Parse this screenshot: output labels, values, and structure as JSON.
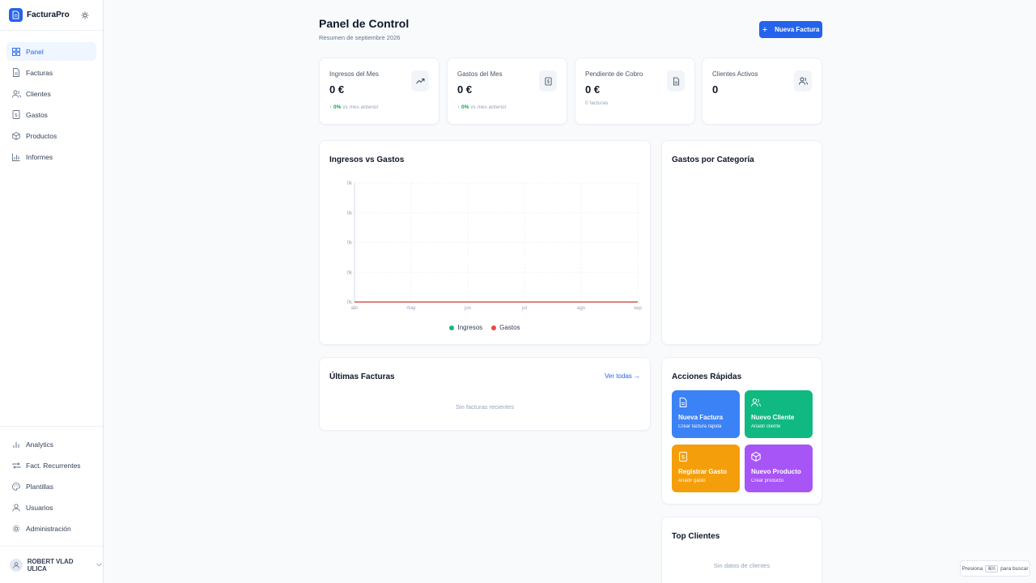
{
  "app": {
    "name": "FacturaPro"
  },
  "sidebar": {
    "items": [
      {
        "label": "Panel",
        "icon": "dashboard-icon",
        "active": true
      },
      {
        "label": "Facturas",
        "icon": "file-icon"
      },
      {
        "label": "Clientes",
        "icon": "users-icon"
      },
      {
        "label": "Gastos",
        "icon": "receipt-icon"
      },
      {
        "label": "Productos",
        "icon": "box-icon"
      },
      {
        "label": "Informes",
        "icon": "bar-chart-icon"
      }
    ],
    "bottom_items": [
      {
        "label": "Analytics",
        "icon": "analytics-icon"
      },
      {
        "label": "Fact. Recurrentes",
        "icon": "repeat-icon"
      },
      {
        "label": "Plantillas",
        "icon": "palette-icon"
      },
      {
        "label": "Usuarios",
        "icon": "user-icon"
      },
      {
        "label": "Administración",
        "icon": "settings-icon"
      }
    ],
    "user": {
      "name": "ROBERT VLAD ULICA"
    }
  },
  "header": {
    "title": "Panel de Control",
    "subtitle": "Resumen de septiembre 2026",
    "new_invoice_label": "Nueva Factura"
  },
  "stats": [
    {
      "label": "Ingresos del Mes",
      "value": "0 €",
      "change": "↑ 0%",
      "note": "vs mes anterior",
      "icon": "trending-up-icon"
    },
    {
      "label": "Gastos del Mes",
      "value": "0 €",
      "change": "↑ 0%",
      "note": "vs mes anterior",
      "icon": "receipt-icon"
    },
    {
      "label": "Pendiente de Cobro",
      "value": "0 €",
      "note": "0 facturas",
      "icon": "file-icon"
    },
    {
      "label": "Clientes Activos",
      "value": "0",
      "icon": "users-icon"
    }
  ],
  "chart_card": {
    "title": "Ingresos vs Gastos"
  },
  "chart_data": {
    "type": "line",
    "x": [
      "abr",
      "may",
      "jun",
      "jul",
      "ago",
      "sep"
    ],
    "yticks": [
      "0k",
      "0k",
      "0k",
      "0k",
      "0k"
    ],
    "series": [
      {
        "name": "Ingresos",
        "color": "#10b981",
        "values": [
          0,
          0,
          0,
          0,
          0,
          0
        ]
      },
      {
        "name": "Gastos",
        "color": "#ef4444",
        "values": [
          0,
          0,
          0,
          0,
          0,
          0
        ]
      }
    ],
    "grid": true,
    "legend": "bottom-center"
  },
  "category_card": {
    "title": "Gastos por Categoría"
  },
  "invoices_card": {
    "title": "Últimas Facturas",
    "link": "Ver todas →",
    "empty": "Sin facturas recientes"
  },
  "quick_actions": {
    "title": "Acciones Rápidas",
    "items": [
      {
        "title": "Nueva Factura",
        "subtitle": "Crear factura rápida",
        "color": "#3b82f6",
        "icon": "file-icon"
      },
      {
        "title": "Nuevo Cliente",
        "subtitle": "Añadir cliente",
        "color": "#10b981",
        "icon": "users-icon"
      },
      {
        "title": "Registrar Gasto",
        "subtitle": "Añadir gasto",
        "color": "#f59e0b",
        "icon": "receipt-icon"
      },
      {
        "title": "Nuevo Producto",
        "subtitle": "Crear producto",
        "color": "#a855f7",
        "icon": "box-icon"
      }
    ]
  },
  "top_clients": {
    "title": "Top Clientes",
    "empty": "Sin datos de clientes"
  },
  "search_hint": {
    "prefix": "Presiona",
    "key": "⌘K",
    "suffix": "para buscar"
  }
}
